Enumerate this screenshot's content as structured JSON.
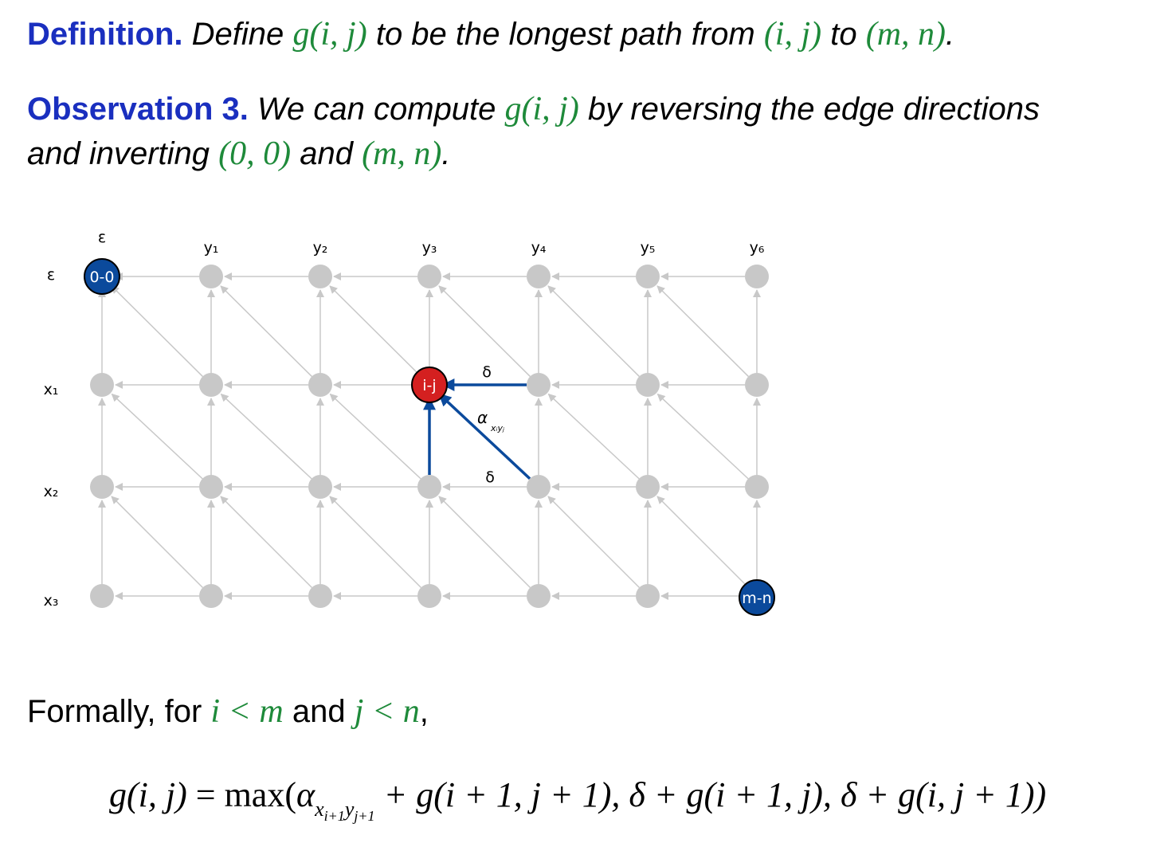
{
  "definition": {
    "label": "Definition.",
    "t1": "Define ",
    "m1": "g(i, j)",
    "t2": " to be the longest path from ",
    "m2": "(i, j)",
    "t3": " to ",
    "m3": "(m, n)",
    "t4": "."
  },
  "observation": {
    "label": "Observation 3.",
    "t1": "We can compute ",
    "m1": "g(i, j)",
    "t2": " by reversing the edge directions",
    "t3": "and inverting ",
    "m2": "(0, 0)",
    "t4": " and ",
    "m3": "(m, n)",
    "t5": "."
  },
  "grid": {
    "col_labels": [
      "ε",
      "y₁",
      "y₂",
      "y₃",
      "y₄",
      "y₅",
      "y₆"
    ],
    "row_labels": [
      "ε",
      "x₁",
      "x₂",
      "x₃"
    ],
    "start_node": "0-0",
    "current_node": "i-j",
    "end_node": "m-n",
    "edge_label_horizontal": "δ",
    "edge_label_vertical": "δ",
    "edge_label_diagonal": "α",
    "edge_label_diagonal_sub": "xᵢyⱼ",
    "colors": {
      "node": "#c8c8c8",
      "edge": "#c8c8c8",
      "highlight_edge": "#0b4a9c",
      "start_end_node": "#0b4a9c",
      "current_node": "#d42020"
    }
  },
  "formally": {
    "t1": "Formally, for ",
    "m1": "i < m",
    "t2": " and ",
    "m2": "j < n",
    "t3": ","
  },
  "formula": {
    "lhs": "g(i, j)",
    "eq": " = max(",
    "alpha": "α",
    "sub_x": "x",
    "sub_x_idx": "i+1",
    "sub_y": "y",
    "sub_y_idx": "j+1",
    "term1_rest": " + g(i + 1, j + 1), ",
    "term2": "δ + g(i + 1, j), ",
    "term3": "δ + g(i, j + 1))"
  }
}
